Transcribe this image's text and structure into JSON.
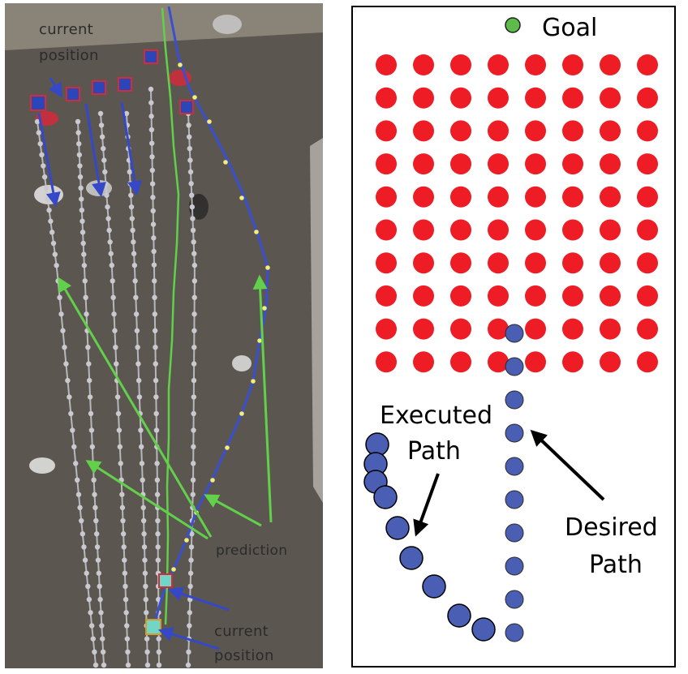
{
  "left_panel": {
    "labels": {
      "current_position_top_line1": "current",
      "current_position_top_line2": "position",
      "prediction": "prediction",
      "current_position_bottom_line1": "current",
      "current_position_bottom_line2": "position"
    },
    "colors": {
      "ground": "#5b5650",
      "far_ground": "#8a8478",
      "track": "#c9c9cf",
      "blue_path": "#3a4fd0",
      "blue_marker": "#2b46b8",
      "marker_border": "#d42a3a",
      "green": "#62d04a",
      "arrow_blue": "#3448c8",
      "yellow_dot": "#f3ee7a"
    }
  },
  "right_panel": {
    "labels": {
      "goal": "Goal",
      "executed_line1": "Executed",
      "executed_line2": "Path",
      "desired_line1": "Desired",
      "desired_line2": "Path"
    },
    "colors": {
      "obstacle": "#ee1c24",
      "path": "#4a5fb3",
      "goal": "#5dbb4a",
      "border": "#000000"
    },
    "obstacle_grid": {
      "rows": 10,
      "cols": 8
    },
    "desired_path_dots": 10,
    "executed_path_dots": 10
  }
}
